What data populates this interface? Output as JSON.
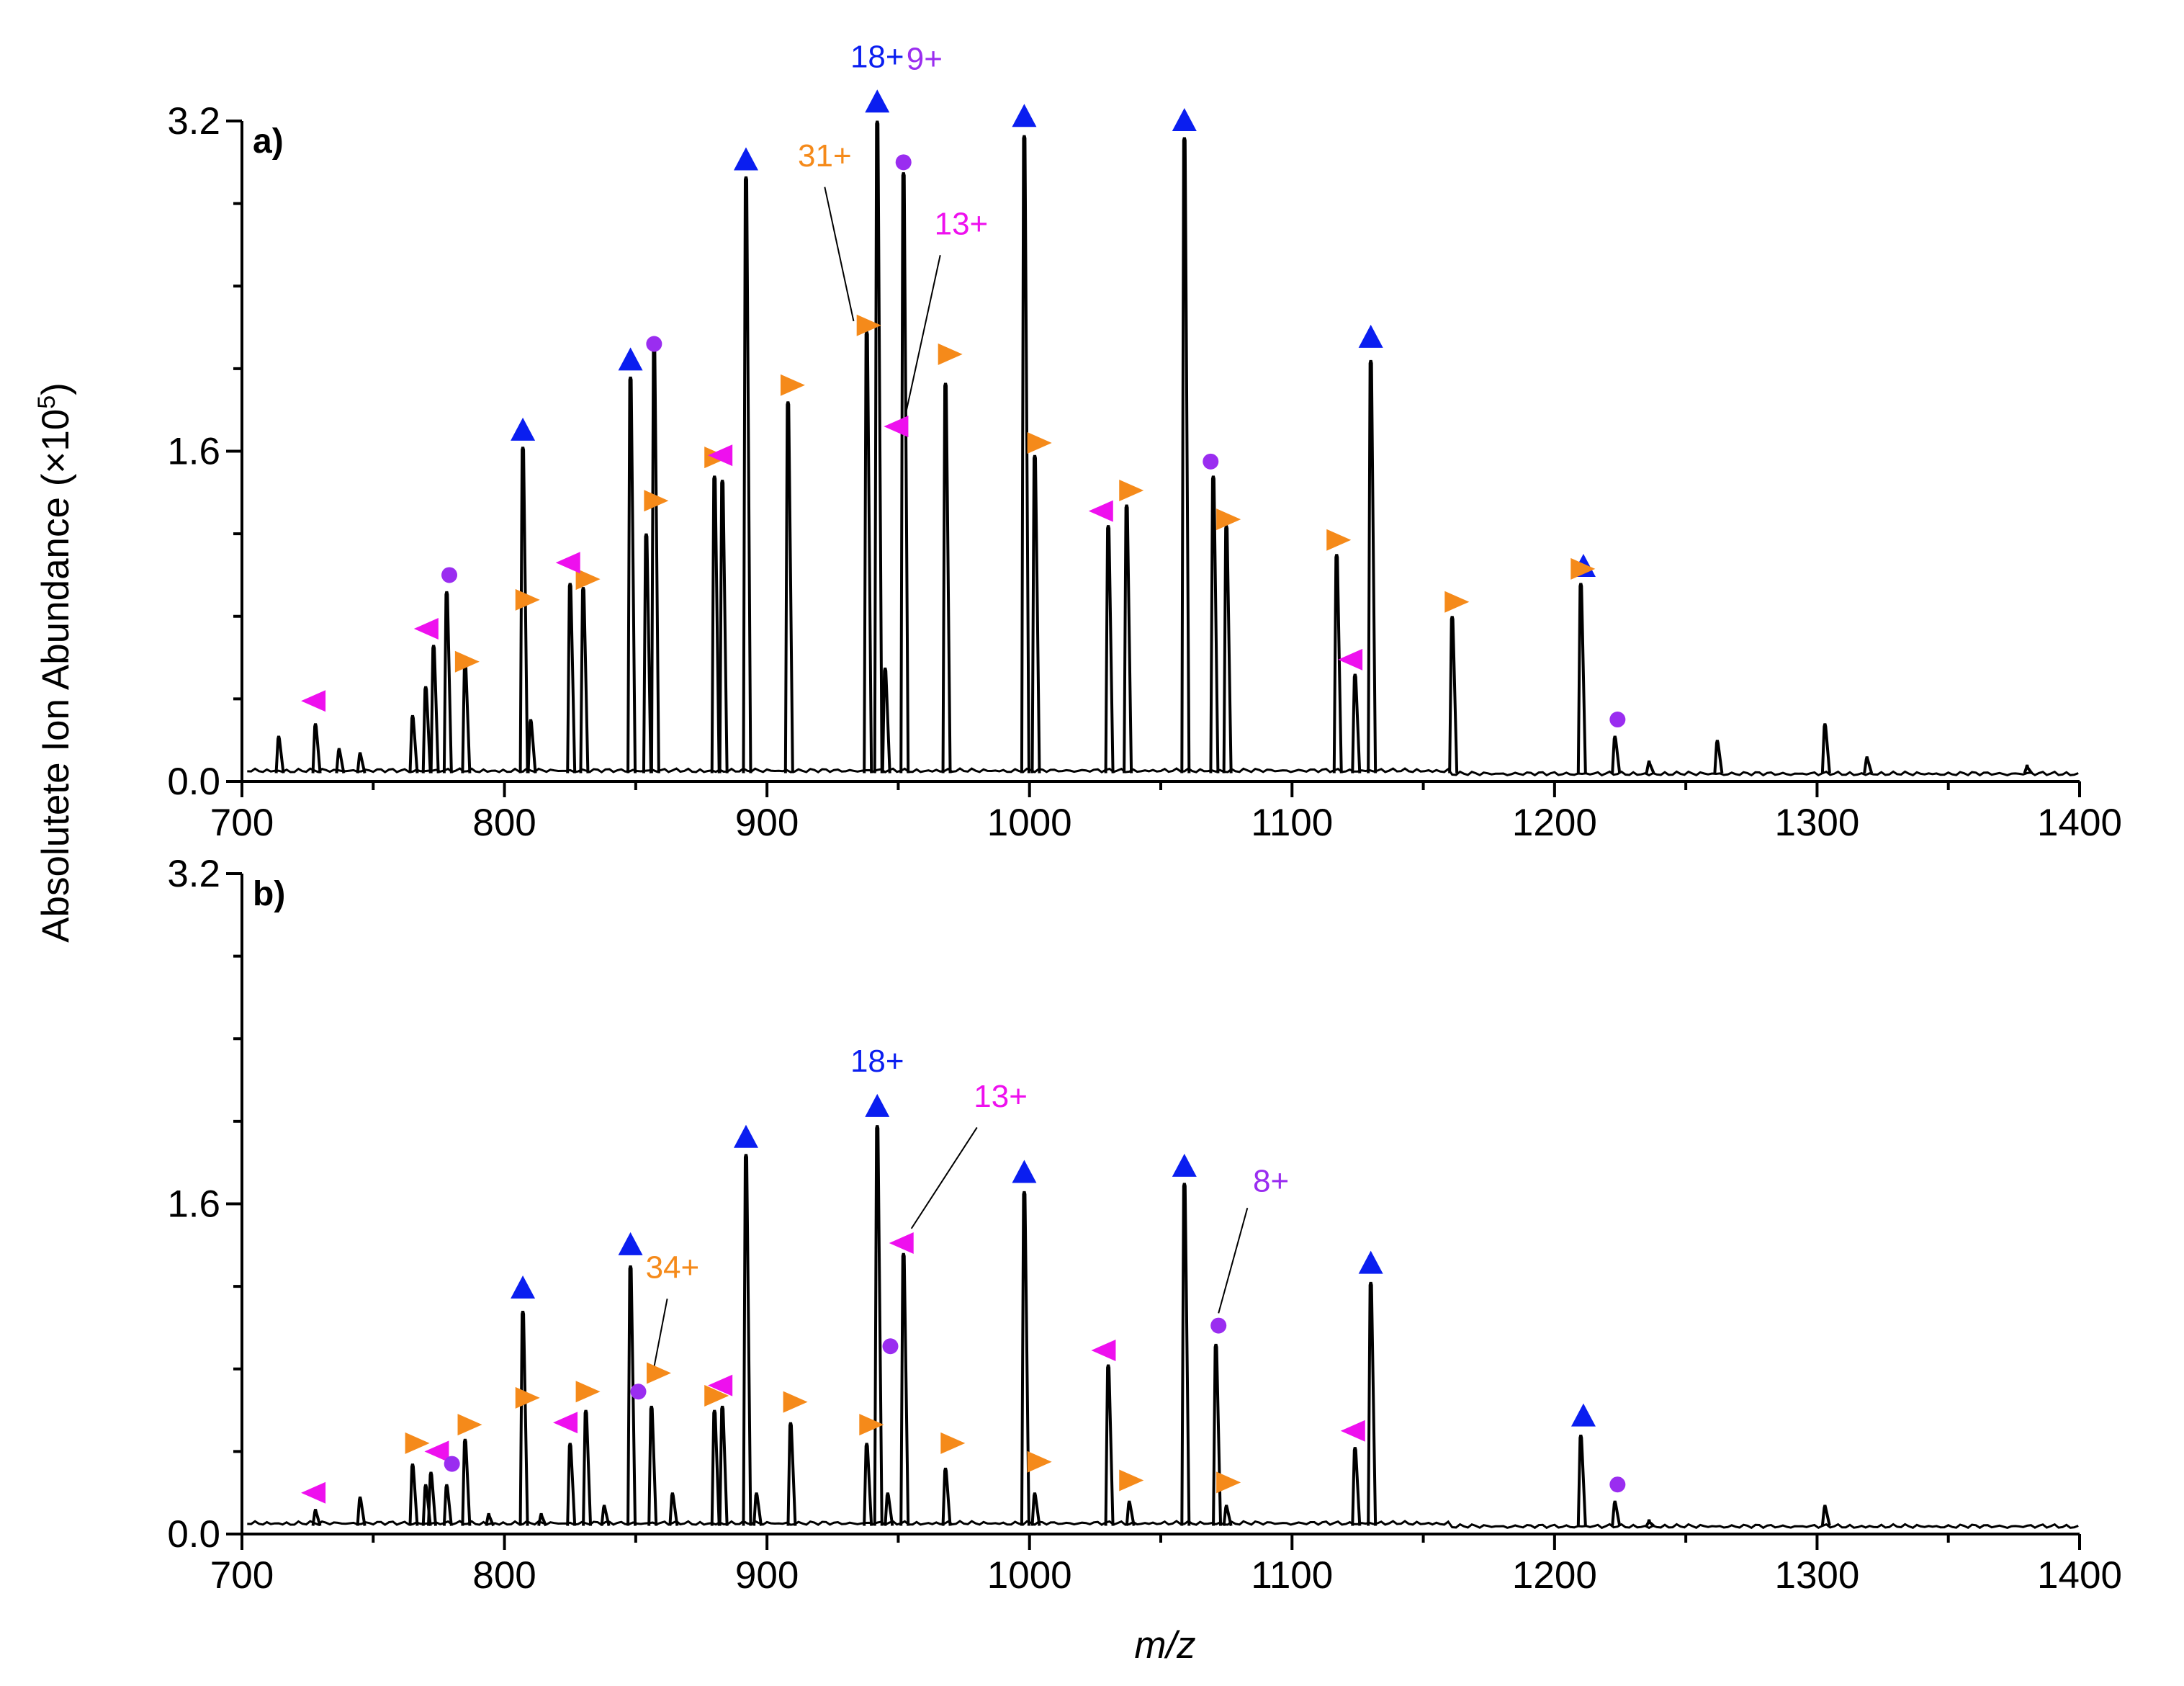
{
  "figure": {
    "y_axis_title": "Absolutete Ion Abundance (×10",
    "y_axis_exponent": "5",
    "y_axis_title_end": ")",
    "x_axis_title_italic": "m/z"
  },
  "colors": {
    "line": "#000000",
    "blue_series": "#0a1ef0",
    "orange_series": "#f58a1a",
    "magenta_series": "#ee10ee",
    "purple_series": "#9a2df0"
  },
  "chart_data": [
    {
      "type": "line",
      "panel": "a)",
      "xlabel": "m/z",
      "ylabel": "Absolutete Ion Abundance (×10^5)",
      "xlim": [
        700,
        1400
      ],
      "ylim": [
        0,
        3.2
      ],
      "x_ticks": [
        "700",
        "800",
        "900",
        "1000",
        "1100",
        "1200",
        "1300",
        "1400"
      ],
      "y_ticks": [
        "0.0",
        "1.6",
        "3.2"
      ],
      "peaks": [
        {
          "x": 714,
          "y": 0.22
        },
        {
          "x": 728,
          "y": 0.28
        },
        {
          "x": 737,
          "y": 0.16
        },
        {
          "x": 745,
          "y": 0.14
        },
        {
          "x": 765,
          "y": 0.32
        },
        {
          "x": 770,
          "y": 0.46
        },
        {
          "x": 773,
          "y": 0.66
        },
        {
          "x": 778,
          "y": 0.92
        },
        {
          "x": 785,
          "y": 0.58
        },
        {
          "x": 807,
          "y": 1.62
        },
        {
          "x": 810,
          "y": 0.3
        },
        {
          "x": 825,
          "y": 0.96
        },
        {
          "x": 830,
          "y": 0.94
        },
        {
          "x": 848,
          "y": 1.96
        },
        {
          "x": 854,
          "y": 1.2
        },
        {
          "x": 857,
          "y": 2.1
        },
        {
          "x": 880,
          "y": 1.48
        },
        {
          "x": 883,
          "y": 1.46
        },
        {
          "x": 892,
          "y": 2.93
        },
        {
          "x": 908,
          "y": 1.84
        },
        {
          "x": 938,
          "y": 2.18
        },
        {
          "x": 942,
          "y": 3.2
        },
        {
          "x": 945,
          "y": 0.55
        },
        {
          "x": 952,
          "y": 2.95
        },
        {
          "x": 968,
          "y": 1.93
        },
        {
          "x": 998,
          "y": 3.13
        },
        {
          "x": 1002,
          "y": 1.58
        },
        {
          "x": 1030,
          "y": 1.24
        },
        {
          "x": 1037,
          "y": 1.34
        },
        {
          "x": 1059,
          "y": 3.12
        },
        {
          "x": 1070,
          "y": 1.48
        },
        {
          "x": 1075,
          "y": 1.24
        },
        {
          "x": 1117,
          "y": 1.1
        },
        {
          "x": 1124,
          "y": 0.52
        },
        {
          "x": 1130,
          "y": 2.04
        },
        {
          "x": 1161,
          "y": 0.8
        },
        {
          "x": 1210,
          "y": 0.96
        },
        {
          "x": 1223,
          "y": 0.22
        },
        {
          "x": 1236,
          "y": 0.1
        },
        {
          "x": 1262,
          "y": 0.2
        },
        {
          "x": 1303,
          "y": 0.28
        },
        {
          "x": 1319,
          "y": 0.12
        },
        {
          "x": 1380,
          "y": 0.08
        }
      ],
      "markers": [
        {
          "shape": "triangle-up",
          "series": "blue",
          "x": 807,
          "y": 1.7
        },
        {
          "shape": "triangle-up",
          "series": "blue",
          "x": 848,
          "y": 2.04
        },
        {
          "shape": "triangle-up",
          "series": "blue",
          "x": 892,
          "y": 3.01
        },
        {
          "shape": "triangle-up",
          "series": "blue",
          "x": 942,
          "y": 3.29
        },
        {
          "shape": "triangle-up",
          "series": "blue",
          "x": 998,
          "y": 3.22
        },
        {
          "shape": "triangle-up",
          "series": "blue",
          "x": 1059,
          "y": 3.2
        },
        {
          "shape": "triangle-up",
          "series": "blue",
          "x": 1130,
          "y": 2.15
        },
        {
          "shape": "triangle-up",
          "series": "blue",
          "x": 1211,
          "y": 1.04
        },
        {
          "shape": "triangle-right",
          "series": "orange",
          "x": 785,
          "y": 0.58
        },
        {
          "shape": "triangle-right",
          "series": "orange",
          "x": 808,
          "y": 0.88
        },
        {
          "shape": "triangle-right",
          "series": "orange",
          "x": 831,
          "y": 0.98
        },
        {
          "shape": "triangle-right",
          "series": "orange",
          "x": 857,
          "y": 1.36
        },
        {
          "shape": "triangle-right",
          "series": "orange",
          "x": 880,
          "y": 1.57
        },
        {
          "shape": "triangle-right",
          "series": "orange",
          "x": 909,
          "y": 1.92
        },
        {
          "shape": "triangle-right",
          "series": "orange",
          "x": 938,
          "y": 2.21
        },
        {
          "shape": "triangle-right",
          "series": "orange",
          "x": 969,
          "y": 2.07
        },
        {
          "shape": "triangle-right",
          "series": "orange",
          "x": 1003,
          "y": 1.64
        },
        {
          "shape": "triangle-right",
          "series": "orange",
          "x": 1038,
          "y": 1.41
        },
        {
          "shape": "triangle-right",
          "series": "orange",
          "x": 1075,
          "y": 1.27
        },
        {
          "shape": "triangle-right",
          "series": "orange",
          "x": 1117,
          "y": 1.17
        },
        {
          "shape": "triangle-right",
          "series": "orange",
          "x": 1162,
          "y": 0.87
        },
        {
          "shape": "triangle-right",
          "series": "orange",
          "x": 1210,
          "y": 1.03
        },
        {
          "shape": "triangle-left",
          "series": "magenta",
          "x": 728,
          "y": 0.39
        },
        {
          "shape": "triangle-left",
          "series": "magenta",
          "x": 771,
          "y": 0.74
        },
        {
          "shape": "triangle-left",
          "series": "magenta",
          "x": 825,
          "y": 1.06
        },
        {
          "shape": "triangle-left",
          "series": "magenta",
          "x": 883,
          "y": 1.58
        },
        {
          "shape": "triangle-left",
          "series": "magenta",
          "x": 950,
          "y": 1.72
        },
        {
          "shape": "triangle-left",
          "series": "magenta",
          "x": 1028,
          "y": 1.31
        },
        {
          "shape": "triangle-left",
          "series": "magenta",
          "x": 1123,
          "y": 0.59
        },
        {
          "shape": "circle",
          "series": "purple",
          "x": 779,
          "y": 1.0
        },
        {
          "shape": "circle",
          "series": "purple",
          "x": 857,
          "y": 2.12
        },
        {
          "shape": "circle",
          "series": "purple",
          "x": 952,
          "y": 3.0
        },
        {
          "shape": "circle",
          "series": "purple",
          "x": 1069,
          "y": 1.55
        },
        {
          "shape": "circle",
          "series": "purple",
          "x": 1224,
          "y": 0.3
        }
      ],
      "annotations": [
        {
          "text": "18+",
          "series": "blue",
          "x": 942,
          "y": 3.46
        },
        {
          "text": "9+",
          "series": "purple",
          "x": 960,
          "y": 3.45
        },
        {
          "text": "31+",
          "series": "orange",
          "x": 922,
          "y": 2.98
        },
        {
          "text": "13+",
          "series": "magenta",
          "x": 974,
          "y": 2.65
        }
      ],
      "leader_lines": [
        {
          "from": [
            922,
            2.88
          ],
          "to": [
            933,
            2.23
          ]
        },
        {
          "from": [
            966,
            2.55
          ],
          "to": [
            953,
            1.79
          ]
        }
      ]
    },
    {
      "type": "line",
      "panel": "b)",
      "xlabel": "m/z",
      "ylabel": "Absolutete Ion Abundance (×10^5)",
      "xlim": [
        700,
        1400
      ],
      "ylim": [
        0,
        3.2
      ],
      "x_ticks": [
        "700",
        "800",
        "900",
        "1000",
        "1100",
        "1200",
        "1300",
        "1400"
      ],
      "y_ticks": [
        "0.0",
        "1.6",
        "3.2"
      ],
      "peaks": [
        {
          "x": 728,
          "y": 0.12
        },
        {
          "x": 745,
          "y": 0.18
        },
        {
          "x": 765,
          "y": 0.34
        },
        {
          "x": 770,
          "y": 0.24
        },
        {
          "x": 772,
          "y": 0.3
        },
        {
          "x": 778,
          "y": 0.24
        },
        {
          "x": 785,
          "y": 0.46
        },
        {
          "x": 794,
          "y": 0.1
        },
        {
          "x": 807,
          "y": 1.08
        },
        {
          "x": 814,
          "y": 0.1
        },
        {
          "x": 825,
          "y": 0.44
        },
        {
          "x": 831,
          "y": 0.6
        },
        {
          "x": 838,
          "y": 0.14
        },
        {
          "x": 848,
          "y": 1.3
        },
        {
          "x": 856,
          "y": 0.62
        },
        {
          "x": 864,
          "y": 0.2
        },
        {
          "x": 880,
          "y": 0.6
        },
        {
          "x": 883,
          "y": 0.62
        },
        {
          "x": 892,
          "y": 1.84
        },
        {
          "x": 896,
          "y": 0.2
        },
        {
          "x": 909,
          "y": 0.54
        },
        {
          "x": 938,
          "y": 0.44
        },
        {
          "x": 942,
          "y": 1.98
        },
        {
          "x": 946,
          "y": 0.2
        },
        {
          "x": 952,
          "y": 1.36
        },
        {
          "x": 968,
          "y": 0.32
        },
        {
          "x": 998,
          "y": 1.66
        },
        {
          "x": 1002,
          "y": 0.2
        },
        {
          "x": 1030,
          "y": 0.82
        },
        {
          "x": 1038,
          "y": 0.16
        },
        {
          "x": 1059,
          "y": 1.7
        },
        {
          "x": 1071,
          "y": 0.92
        },
        {
          "x": 1075,
          "y": 0.14
        },
        {
          "x": 1124,
          "y": 0.42
        },
        {
          "x": 1130,
          "y": 1.22
        },
        {
          "x": 1210,
          "y": 0.48
        },
        {
          "x": 1223,
          "y": 0.16
        },
        {
          "x": 1236,
          "y": 0.07
        },
        {
          "x": 1303,
          "y": 0.14
        }
      ],
      "markers": [
        {
          "shape": "triangle-up",
          "series": "blue",
          "x": 807,
          "y": 1.19
        },
        {
          "shape": "triangle-up",
          "series": "blue",
          "x": 848,
          "y": 1.4
        },
        {
          "shape": "triangle-up",
          "series": "blue",
          "x": 892,
          "y": 1.92
        },
        {
          "shape": "triangle-up",
          "series": "blue",
          "x": 942,
          "y": 2.07
        },
        {
          "shape": "triangle-up",
          "series": "blue",
          "x": 998,
          "y": 1.75
        },
        {
          "shape": "triangle-up",
          "series": "blue",
          "x": 1059,
          "y": 1.78
        },
        {
          "shape": "triangle-up",
          "series": "blue",
          "x": 1130,
          "y": 1.31
        },
        {
          "shape": "triangle-up",
          "series": "blue",
          "x": 1211,
          "y": 0.57
        },
        {
          "shape": "triangle-right",
          "series": "orange",
          "x": 766,
          "y": 0.44
        },
        {
          "shape": "triangle-right",
          "series": "orange",
          "x": 786,
          "y": 0.53
        },
        {
          "shape": "triangle-right",
          "series": "orange",
          "x": 808,
          "y": 0.66
        },
        {
          "shape": "triangle-right",
          "series": "orange",
          "x": 831,
          "y": 0.69
        },
        {
          "shape": "triangle-right",
          "series": "orange",
          "x": 858,
          "y": 0.78
        },
        {
          "shape": "triangle-right",
          "series": "orange",
          "x": 880,
          "y": 0.67
        },
        {
          "shape": "triangle-right",
          "series": "orange",
          "x": 910,
          "y": 0.64
        },
        {
          "shape": "triangle-right",
          "series": "orange",
          "x": 939,
          "y": 0.53
        },
        {
          "shape": "triangle-right",
          "series": "orange",
          "x": 970,
          "y": 0.44
        },
        {
          "shape": "triangle-right",
          "series": "orange",
          "x": 1003,
          "y": 0.35
        },
        {
          "shape": "triangle-right",
          "series": "orange",
          "x": 1038,
          "y": 0.26
        },
        {
          "shape": "triangle-right",
          "series": "orange",
          "x": 1075,
          "y": 0.25
        },
        {
          "shape": "triangle-left",
          "series": "magenta",
          "x": 728,
          "y": 0.2
        },
        {
          "shape": "triangle-left",
          "series": "magenta",
          "x": 775,
          "y": 0.4
        },
        {
          "shape": "triangle-left",
          "series": "magenta",
          "x": 824,
          "y": 0.54
        },
        {
          "shape": "triangle-left",
          "series": "magenta",
          "x": 883,
          "y": 0.72
        },
        {
          "shape": "triangle-left",
          "series": "magenta",
          "x": 952,
          "y": 1.41
        },
        {
          "shape": "triangle-left",
          "series": "magenta",
          "x": 1029,
          "y": 0.89
        },
        {
          "shape": "triangle-left",
          "series": "magenta",
          "x": 1124,
          "y": 0.5
        },
        {
          "shape": "circle",
          "series": "purple",
          "x": 780,
          "y": 0.34
        },
        {
          "shape": "circle",
          "series": "purple",
          "x": 851,
          "y": 0.69
        },
        {
          "shape": "circle",
          "series": "purple",
          "x": 947,
          "y": 0.91
        },
        {
          "shape": "circle",
          "series": "purple",
          "x": 1072,
          "y": 1.01
        },
        {
          "shape": "circle",
          "series": "purple",
          "x": 1224,
          "y": 0.24
        }
      ],
      "annotations": [
        {
          "text": "18+",
          "series": "blue",
          "x": 942,
          "y": 2.24
        },
        {
          "text": "13+",
          "series": "magenta",
          "x": 989,
          "y": 2.07
        },
        {
          "text": "8+",
          "series": "purple",
          "x": 1092,
          "y": 1.66
        },
        {
          "text": "34+",
          "series": "orange",
          "x": 864,
          "y": 1.24
        }
      ],
      "leader_lines": [
        {
          "from": [
            980,
            1.97
          ],
          "to": [
            955,
            1.48
          ]
        },
        {
          "from": [
            1083,
            1.58
          ],
          "to": [
            1072,
            1.07
          ]
        },
        {
          "from": [
            862,
            1.14
          ],
          "to": [
            857,
            0.81
          ]
        }
      ]
    }
  ]
}
